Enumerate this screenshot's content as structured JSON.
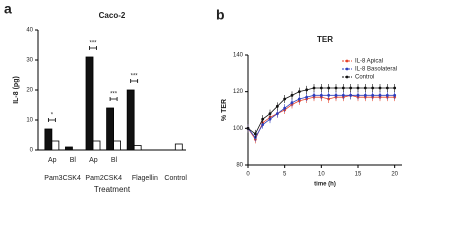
{
  "chart_data": [
    {
      "type": "bar",
      "panel": "a",
      "title": "Caco-2",
      "y_label": "IL-8 (pg)",
      "x_label": "Treatment",
      "categories": [
        "Ap",
        "Bl",
        "Ap",
        "Bl",
        null,
        null,
        null
      ],
      "group_labels": [
        "Pam3CSK4",
        null,
        "Pam2CSK4",
        null,
        "Flagellin",
        null,
        "Control"
      ],
      "annotations": [
        "*",
        null,
        "***",
        "***",
        "***",
        null,
        null
      ],
      "series": [
        {
          "color": "#111111",
          "values": [
            7,
            1,
            31,
            14,
            20,
            null,
            null
          ]
        },
        {
          "color": "#ffffff",
          "values": [
            3,
            null,
            3,
            3,
            1.5,
            null,
            2
          ]
        }
      ],
      "ylim": [
        0,
        40
      ],
      "yticks": [
        0,
        10,
        20,
        30,
        40
      ]
    },
    {
      "type": "line",
      "panel": "b",
      "title": "TER",
      "y_label": "% TER",
      "x_label": "time (h)",
      "x": [
        0,
        1,
        2,
        3,
        4,
        5,
        6,
        7,
        8,
        9,
        10,
        11,
        12,
        13,
        14,
        15,
        16,
        17,
        18,
        19,
        20
      ],
      "series": [
        {
          "name": "IL-8 Apical",
          "color": "#e8452c",
          "values": [
            100,
            94,
            103,
            106,
            108,
            110,
            113,
            115,
            116,
            117,
            117,
            116,
            117,
            117,
            118,
            117,
            117,
            117,
            117,
            117,
            117
          ]
        },
        {
          "name": "IL-8 Basolateral",
          "color": "#2b3fbf",
          "values": [
            100,
            95,
            102,
            105,
            108,
            111,
            114,
            116,
            117,
            118,
            118,
            118,
            118,
            118,
            118,
            118,
            118,
            118,
            118,
            118,
            118
          ]
        },
        {
          "name": "Control",
          "color": "#111111",
          "values": [
            100,
            97,
            105,
            108,
            112,
            116,
            118,
            120,
            121,
            122,
            122,
            122,
            122,
            122,
            122,
            122,
            122,
            122,
            122,
            122,
            122
          ]
        }
      ],
      "xlim": [
        0,
        21
      ],
      "xticks": [
        0,
        5,
        10,
        15,
        20
      ],
      "ylim": [
        80,
        140
      ],
      "yticks": [
        80,
        100,
        120,
        140
      ],
      "legend": "top-right"
    }
  ]
}
